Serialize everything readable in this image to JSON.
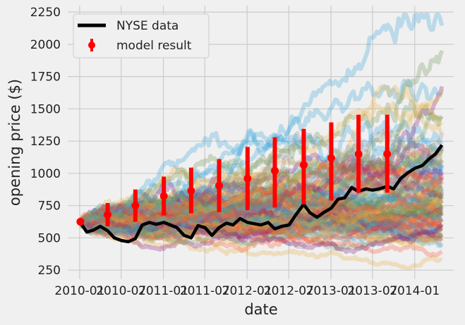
{
  "chart_data": {
    "type": "line",
    "xlabel": "date",
    "ylabel": "opening price ($)",
    "xlim": [
      "2009-11-10",
      "2014-06-20"
    ],
    "ylim": [
      180,
      2300
    ],
    "x_ticks": [
      "2010-01",
      "2010-07",
      "2011-01",
      "2011-07",
      "2012-01",
      "2012-07",
      "2013-01",
      "2013-07",
      "2014-01"
    ],
    "y_ticks": [
      250,
      500,
      750,
      1000,
      1250,
      1500,
      1750,
      2000,
      2250
    ],
    "grid": true,
    "legend": {
      "placement": "top-left",
      "entries": [
        "NYSE data",
        "model result"
      ]
    },
    "colors": {
      "data": "#000000",
      "model": "#ff0000",
      "background": "#f0f0f0",
      "grid": "#cbcbcb"
    },
    "simulation": {
      "start_value": 620,
      "start_date": "2010-01-04",
      "end_date": "2014-04-30"
    },
    "series": [
      {
        "name": "NYSE data",
        "x": [
          "2010-01-04",
          "2010-02-01",
          "2010-03-01",
          "2010-04-01",
          "2010-05-03",
          "2010-06-01",
          "2010-07-01",
          "2010-08-02",
          "2010-09-01",
          "2010-10-01",
          "2010-11-01",
          "2010-12-01",
          "2011-01-03",
          "2011-02-01",
          "2011-03-01",
          "2011-04-01",
          "2011-05-02",
          "2011-06-01",
          "2011-07-01",
          "2011-08-01",
          "2011-09-01",
          "2011-10-03",
          "2011-11-01",
          "2011-12-01",
          "2012-01-03",
          "2012-02-01",
          "2012-03-01",
          "2012-04-02",
          "2012-05-01",
          "2012-06-01",
          "2012-07-02",
          "2012-08-01",
          "2012-09-04",
          "2012-10-01",
          "2012-11-01",
          "2012-12-03",
          "2013-01-02",
          "2013-02-01",
          "2013-03-01",
          "2013-04-01",
          "2013-05-01",
          "2013-06-03",
          "2013-07-01",
          "2013-08-01",
          "2013-09-03",
          "2013-10-01",
          "2013-11-01",
          "2013-12-02",
          "2014-01-02",
          "2014-02-03",
          "2014-03-03",
          "2014-04-01",
          "2014-04-30"
        ],
        "values": [
          620,
          545,
          560,
          590,
          555,
          500,
          480,
          470,
          495,
          600,
          620,
          605,
          620,
          600,
          580,
          520,
          500,
          595,
          580,
          520,
          580,
          615,
          600,
          650,
          620,
          610,
          600,
          620,
          570,
          590,
          600,
          680,
          760,
          695,
          660,
          700,
          730,
          800,
          810,
          890,
          860,
          880,
          870,
          880,
          900,
          880,
          960,
          1005,
          1040,
          1060,
          1110,
          1150,
          1220
        ]
      },
      {
        "name": "model result",
        "x": [
          "2010-01-04",
          "2010-05-03",
          "2010-09-01",
          "2011-01-03",
          "2011-05-02",
          "2011-09-01",
          "2012-01-03",
          "2012-05-01",
          "2012-09-04",
          "2013-01-02",
          "2013-05-01",
          "2013-09-03"
        ],
        "values": [
          625,
          680,
          750,
          825,
          865,
          905,
          960,
          1020,
          1065,
          1120,
          1150,
          1150
        ],
        "lower": [
          625,
          590,
          625,
          675,
          690,
          700,
          715,
          735,
          760,
          790,
          850,
          850
        ],
        "upper": [
          625,
          770,
          875,
          975,
          1045,
          1110,
          1205,
          1280,
          1345,
          1395,
          1455,
          1455
        ]
      }
    ]
  }
}
